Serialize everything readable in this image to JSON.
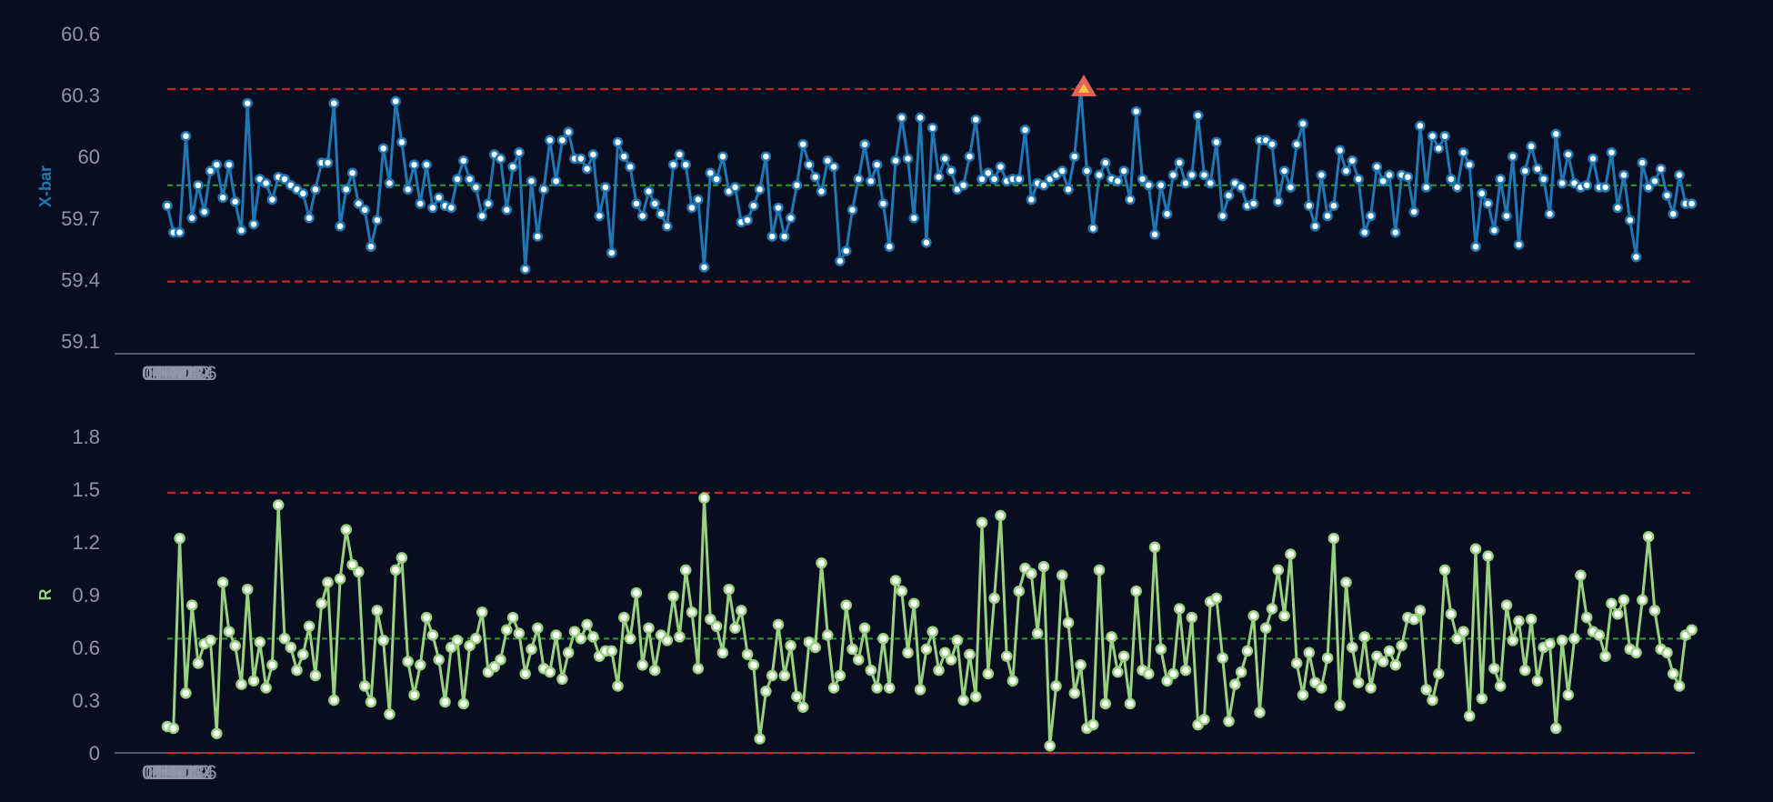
{
  "chart_data": [
    {
      "type": "line",
      "ylabel": "X-bar",
      "yticks": [
        "59.1",
        "59.4",
        "59.7",
        "60",
        "60.3",
        "60.6"
      ],
      "ylim": [
        59.1,
        60.6
      ],
      "xticks": [
        "01:00",
        "01:02",
        "01:04",
        "01:06",
        "01:08",
        "01:10",
        "01:12",
        "01:14",
        "01:16"
      ],
      "xlim_seconds": [
        0,
        990
      ],
      "grid": false,
      "control_limits": {
        "ucl": 60.33,
        "center": 59.86,
        "lcl": 59.39
      },
      "colors": {
        "line": "#1f77b4",
        "point_fill": "#ffffff",
        "center": "#2ca02c",
        "limit": "#d62728",
        "alarm": "#e8635a",
        "alarm_inner": "#f5c542"
      },
      "alarm_point": {
        "time": "01:09:54",
        "value": 60.33
      },
      "series": [
        {
          "sample_interval_seconds": 4,
          "values": [
            59.76,
            59.63,
            59.63,
            60.1,
            59.7,
            59.86,
            59.73,
            59.93,
            59.96,
            59.8,
            59.96,
            59.78,
            59.64,
            60.26,
            59.67,
            59.89,
            59.87,
            59.79,
            59.9,
            59.89,
            59.86,
            59.84,
            59.82,
            59.7,
            59.84,
            59.97,
            59.97,
            60.26,
            59.66,
            59.84,
            59.92,
            59.77,
            59.74,
            59.56,
            59.69,
            60.04,
            59.87,
            60.27,
            60.07,
            59.84,
            59.96,
            59.77,
            59.96,
            59.75,
            59.8,
            59.76,
            59.75,
            59.89,
            59.98,
            59.89,
            59.85,
            59.71,
            59.77,
            60.01,
            59.99,
            59.74,
            59.95,
            60.02,
            59.45,
            59.88,
            59.61,
            59.84,
            60.08,
            59.88,
            60.08,
            60.12,
            59.99,
            59.99,
            59.94,
            60.01,
            59.71,
            59.85,
            59.53,
            60.07,
            60.0,
            59.95,
            59.77,
            59.71,
            59.83,
            59.77,
            59.72,
            59.66,
            59.96,
            60.01,
            59.96,
            59.75,
            59.79,
            59.46,
            59.92,
            59.89,
            60.0,
            59.83,
            59.85,
            59.68,
            59.69,
            59.76,
            59.84,
            60.0,
            59.61,
            59.75,
            59.61,
            59.7,
            59.86,
            60.06,
            59.96,
            59.9,
            59.83,
            59.98,
            59.95,
            59.49,
            59.54,
            59.74,
            59.89,
            60.06,
            59.88,
            59.96,
            59.77,
            59.56,
            59.98,
            60.19,
            59.99,
            59.7,
            60.19,
            59.58,
            60.14,
            59.9,
            59.99,
            59.93,
            59.84,
            59.86,
            60.0,
            60.18,
            59.89,
            59.92,
            59.89,
            59.95,
            59.88,
            59.89,
            59.89,
            60.13,
            59.79,
            59.87,
            59.86,
            59.89,
            59.91,
            59.93,
            59.84,
            60.0,
            60.33,
            59.93,
            59.65,
            59.91,
            59.97,
            59.89,
            59.88,
            59.93,
            59.79,
            60.22,
            59.89,
            59.86,
            59.62,
            59.86,
            59.72,
            59.91,
            59.97,
            59.87,
            59.91,
            60.2,
            59.91,
            59.87,
            60.07,
            59.71,
            59.81,
            59.87,
            59.85,
            59.76,
            59.77,
            60.08,
            60.08,
            60.06,
            59.78,
            59.93,
            59.85,
            60.06,
            60.16,
            59.76,
            59.66,
            59.91,
            59.71,
            59.76,
            60.03,
            59.93,
            59.98,
            59.89,
            59.63,
            59.71,
            59.95,
            59.88,
            59.91,
            59.63,
            59.91,
            59.9,
            59.73,
            60.15,
            59.85,
            60.1,
            60.04,
            60.1,
            59.89,
            59.85,
            60.02,
            59.96,
            59.56,
            59.82,
            59.77,
            59.64,
            59.89,
            59.71,
            60.0,
            59.57,
            59.93,
            60.05,
            59.94,
            59.89,
            59.72,
            60.11,
            59.87,
            60.01,
            59.87,
            59.85,
            59.86,
            59.99,
            59.85,
            59.85,
            60.02,
            59.75,
            59.91,
            59.69,
            59.51,
            59.97,
            59.85,
            59.88,
            59.94,
            59.81,
            59.72,
            59.91,
            59.77,
            59.77
          ]
        }
      ]
    },
    {
      "type": "line",
      "ylabel": "R",
      "yticks": [
        "0",
        "0.3",
        "0.6",
        "0.9",
        "1.2",
        "1.5",
        "1.8"
      ],
      "ylim": [
        0,
        1.8
      ],
      "xticks": [
        "01:00",
        "01:02",
        "01:04",
        "01:06",
        "01:08",
        "01:10",
        "01:12",
        "01:14",
        "01:16"
      ],
      "xlim_seconds": [
        0,
        990
      ],
      "grid": false,
      "control_limits": {
        "ucl": 1.48,
        "center": 0.65,
        "lcl": 0
      },
      "colors": {
        "line": "#98d17f",
        "point_fill": "#ffffff",
        "center": "#2ca02c",
        "limit": "#d62728"
      },
      "series": [
        {
          "sample_interval_seconds": 4,
          "values": [
            0.15,
            0.14,
            1.22,
            0.34,
            0.84,
            0.51,
            0.62,
            0.64,
            0.11,
            0.97,
            0.69,
            0.61,
            0.39,
            0.93,
            0.41,
            0.63,
            0.37,
            0.5,
            1.41,
            0.65,
            0.6,
            0.47,
            0.56,
            0.72,
            0.44,
            0.85,
            0.97,
            0.3,
            0.99,
            1.27,
            1.07,
            1.03,
            0.38,
            0.29,
            0.81,
            0.64,
            0.22,
            1.04,
            1.11,
            0.52,
            0.33,
            0.5,
            0.77,
            0.67,
            0.53,
            0.29,
            0.6,
            0.64,
            0.28,
            0.61,
            0.65,
            0.8,
            0.46,
            0.49,
            0.53,
            0.7,
            0.77,
            0.68,
            0.45,
            0.59,
            0.71,
            0.48,
            0.46,
            0.67,
            0.42,
            0.57,
            0.69,
            0.65,
            0.73,
            0.66,
            0.55,
            0.58,
            0.58,
            0.38,
            0.77,
            0.65,
            0.91,
            0.5,
            0.71,
            0.47,
            0.67,
            0.64,
            0.89,
            0.66,
            1.04,
            0.8,
            0.48,
            1.45,
            0.76,
            0.72,
            0.57,
            0.93,
            0.71,
            0.81,
            0.56,
            0.5,
            0.08,
            0.35,
            0.44,
            0.73,
            0.44,
            0.61,
            0.32,
            0.26,
            0.63,
            0.6,
            1.08,
            0.67,
            0.37,
            0.44,
            0.84,
            0.59,
            0.53,
            0.71,
            0.47,
            0.37,
            0.65,
            0.37,
            0.98,
            0.92,
            0.57,
            0.85,
            0.36,
            0.59,
            0.69,
            0.47,
            0.57,
            0.53,
            0.64,
            0.3,
            0.56,
            0.32,
            1.31,
            0.45,
            0.88,
            1.35,
            0.55,
            0.41,
            0.92,
            1.05,
            1.02,
            0.68,
            1.06,
            0.04,
            0.38,
            1.01,
            0.74,
            0.34,
            0.5,
            0.14,
            0.16,
            1.04,
            0.28,
            0.66,
            0.46,
            0.55,
            0.28,
            0.92,
            0.47,
            0.45,
            1.17,
            0.59,
            0.41,
            0.45,
            0.82,
            0.47,
            0.77,
            0.16,
            0.19,
            0.86,
            0.88,
            0.54,
            0.18,
            0.39,
            0.46,
            0.58,
            0.78,
            0.23,
            0.71,
            0.82,
            1.04,
            0.78,
            1.13,
            0.51,
            0.33,
            0.57,
            0.4,
            0.37,
            0.54,
            1.22,
            0.27,
            0.97,
            0.6,
            0.4,
            0.66,
            0.37,
            0.55,
            0.52,
            0.58,
            0.5,
            0.61,
            0.77,
            0.76,
            0.81,
            0.36,
            0.3,
            0.45,
            1.04,
            0.79,
            0.65,
            0.69,
            0.21,
            1.16,
            0.31,
            1.12,
            0.48,
            0.38,
            0.84,
            0.64,
            0.75,
            0.47,
            0.76,
            0.41,
            0.6,
            0.62,
            0.14,
            0.64,
            0.33,
            0.65,
            1.01,
            0.77,
            0.69,
            0.67,
            0.55,
            0.85,
            0.79,
            0.87,
            0.59,
            0.57,
            0.87,
            1.23,
            0.81,
            0.59,
            0.57,
            0.45,
            0.38,
            0.67,
            0.7
          ]
        }
      ]
    }
  ]
}
